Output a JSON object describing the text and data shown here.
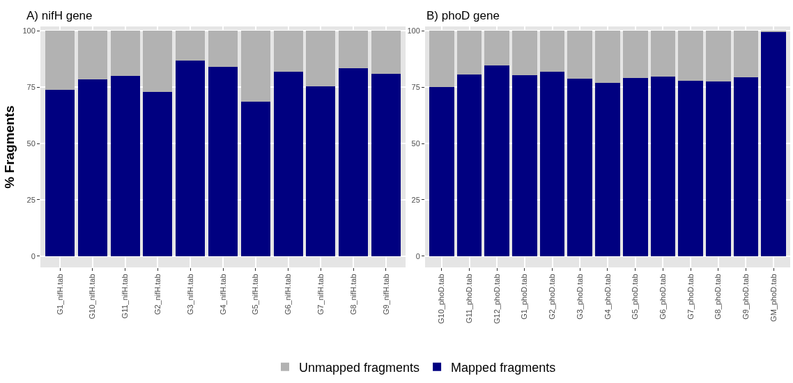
{
  "chart_data": [
    {
      "type": "bar",
      "title": "A) nifH gene",
      "ylabel": "% Fragments",
      "stacked": true,
      "grid": true,
      "legend": "bottom",
      "categories": [
        "G1_nifH.tab",
        "G10_nifH.tab",
        "G11_nifH.tab",
        "G2_nifH.tab",
        "G3_nifH.tab",
        "G4_nifH.tab",
        "G5_nifH.tab",
        "G6_nifH.tab",
        "G7_nifH.tab",
        "G8_nifH.tab",
        "G9_nifH.tab"
      ],
      "ylim": [
        -5,
        102
      ],
      "yticks": [
        0,
        25,
        50,
        75,
        100
      ],
      "series": [
        {
          "name": "Mapped fragments",
          "color": "#000080",
          "values": [
            74.0,
            78.5,
            79.9,
            72.9,
            86.9,
            84.2,
            68.5,
            82.0,
            75.5,
            83.5,
            81.1
          ]
        },
        {
          "name": "Unmapped fragments",
          "color": "#b2b2b2",
          "values": [
            26.0,
            21.5,
            20.1,
            27.1,
            13.1,
            15.8,
            31.5,
            18.0,
            24.5,
            16.5,
            18.9
          ]
        }
      ]
    },
    {
      "type": "bar",
      "title": "B) phoD gene",
      "stacked": true,
      "grid": true,
      "categories": [
        "G10_phoD.tab",
        "G11_phoD.tab",
        "G12_phoD.tab",
        "G1_phoD.tab",
        "G2_phoD.tab",
        "G3_phoD.tab",
        "G4_phoD.tab",
        "G5_phoD.tab",
        "G6_phoD.tab",
        "G7_phoD.tab",
        "G8_phoD.tab",
        "G9_phoD.tab",
        "GM_phoD.tab"
      ],
      "ylim": [
        -5,
        102
      ],
      "yticks": [
        0,
        25,
        50,
        75,
        100
      ],
      "series": [
        {
          "color": "#000080",
          "values": [
            75.2,
            80.7,
            84.7,
            80.5,
            82.0,
            78.7,
            77.0,
            79.2,
            79.8,
            78.0,
            77.7,
            79.5,
            99.6
          ]
        },
        {
          "color": "#b2b2b2",
          "values": [
            24.8,
            19.3,
            15.3,
            19.5,
            18.0,
            21.3,
            23.0,
            20.8,
            20.2,
            22.0,
            22.3,
            20.5,
            0.4
          ]
        }
      ]
    }
  ]
}
